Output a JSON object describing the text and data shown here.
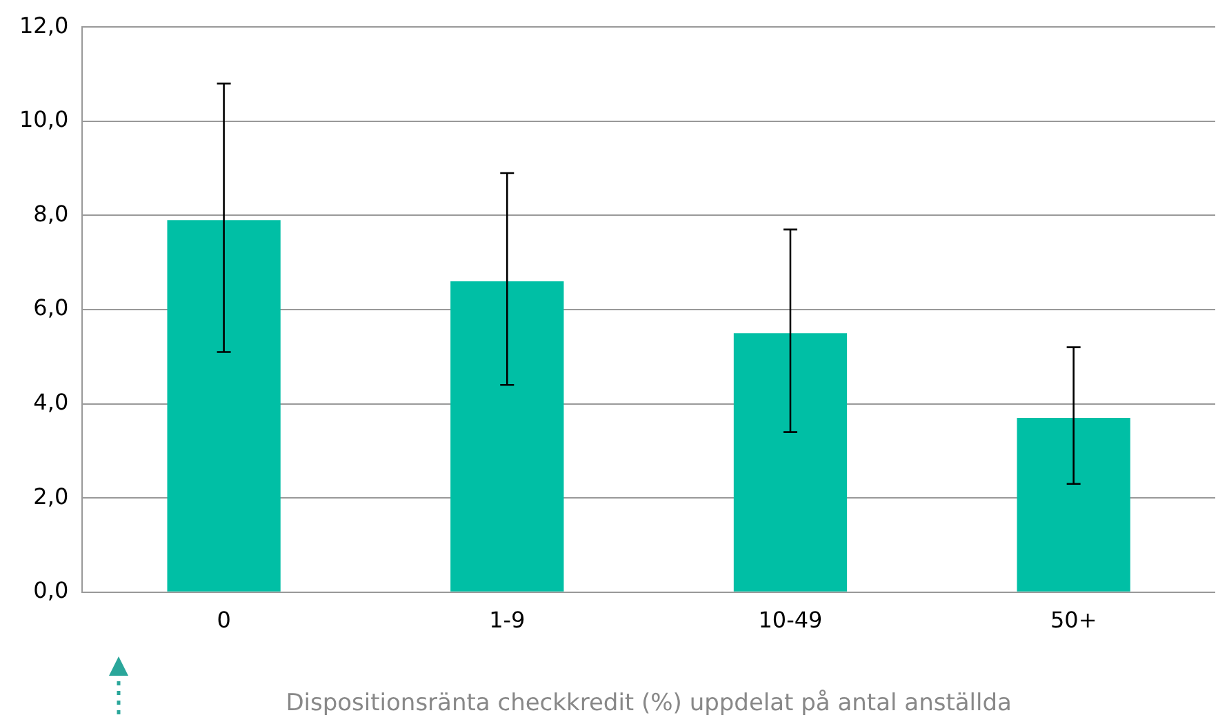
{
  "chart_data": {
    "type": "bar",
    "xlabel": "Dispositionsränta checkkredit (%) uppdelat på antal anställda",
    "categories": [
      "0",
      "1-9",
      "10-49",
      "50+"
    ],
    "values": [
      7.9,
      6.6,
      5.5,
      3.7
    ],
    "errors": [
      [
        5.1,
        10.8
      ],
      [
        4.4,
        8.9
      ],
      [
        3.4,
        7.7
      ],
      [
        2.3,
        5.2
      ]
    ],
    "color": "#00bfa5",
    "ylim": [
      0,
      12
    ],
    "yticks": [
      {
        "value": 0,
        "label": "0,0"
      },
      {
        "value": 2,
        "label": "2,0"
      },
      {
        "value": 4,
        "label": "4,0"
      },
      {
        "value": 6,
        "label": "6,0"
      },
      {
        "value": 8,
        "label": "8,0"
      },
      {
        "value": 10,
        "label": "10,0"
      },
      {
        "value": 12,
        "label": "12,0"
      }
    ],
    "grid": "y",
    "legend": false
  }
}
